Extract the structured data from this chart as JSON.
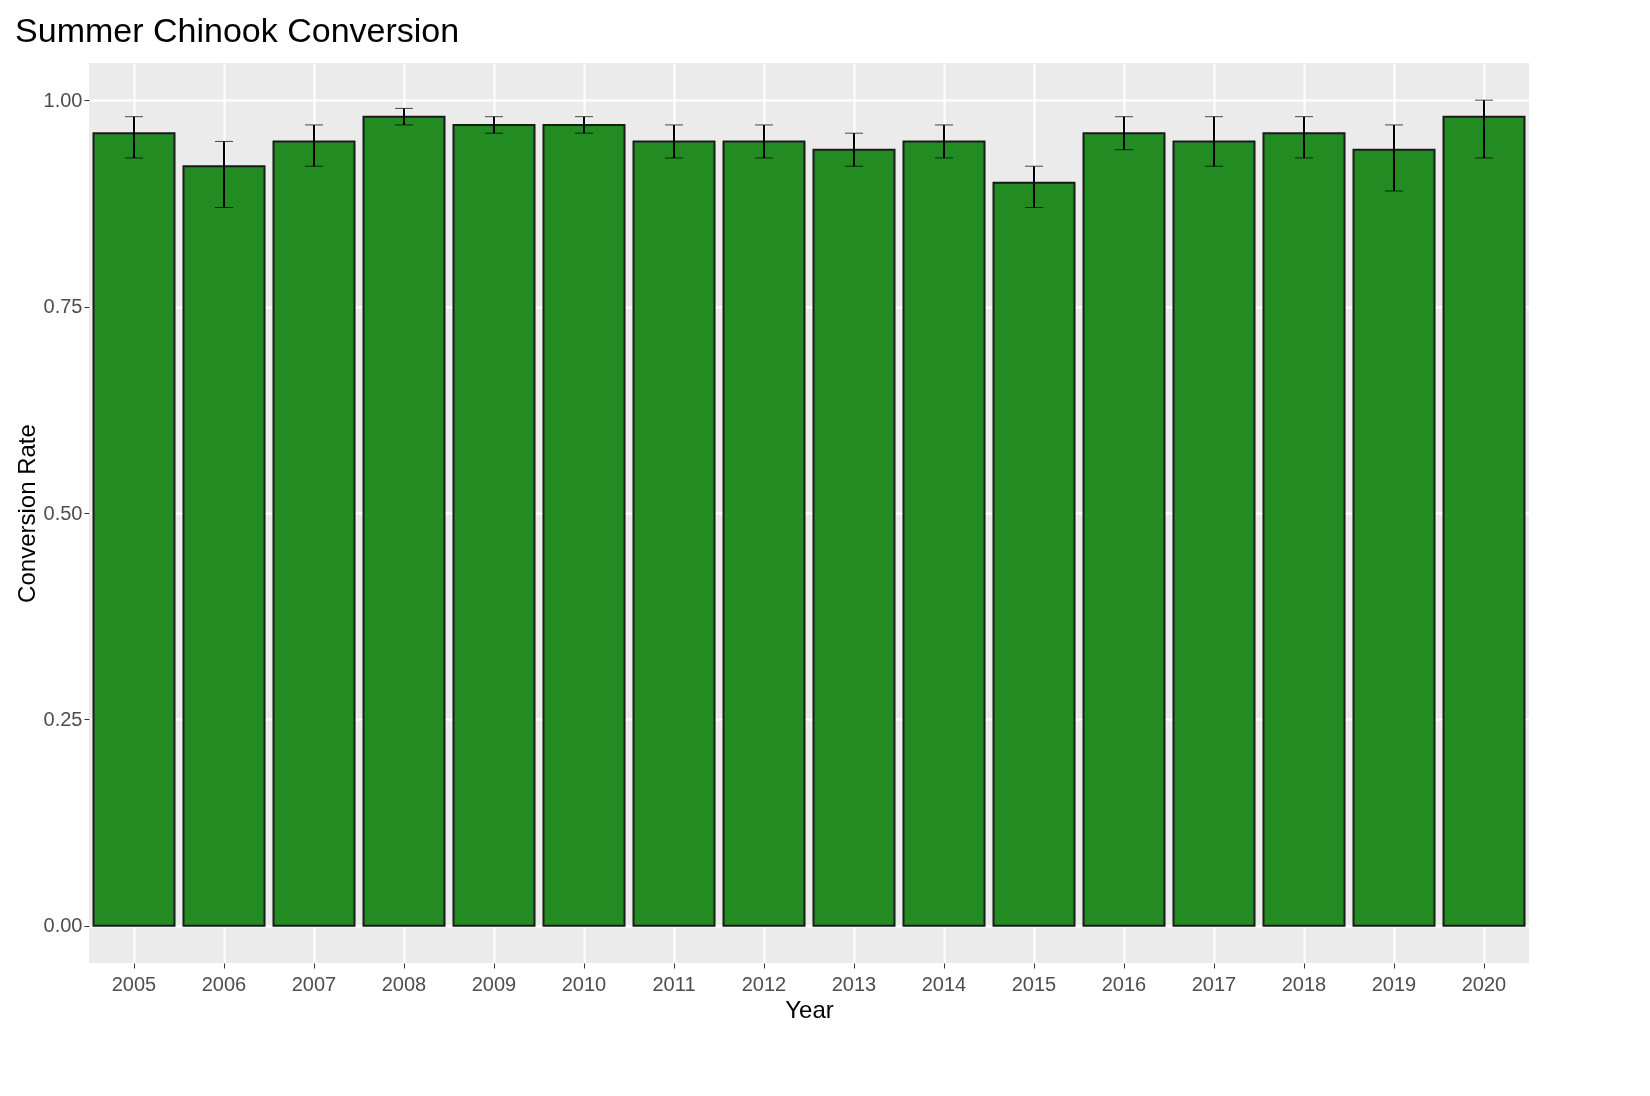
{
  "chart_data": {
    "type": "bar",
    "title": "Summer Chinook Conversion",
    "xlabel": "Year",
    "ylabel": "Conversion Rate",
    "categories": [
      "2005",
      "2006",
      "2007",
      "2008",
      "2009",
      "2010",
      "2011",
      "2012",
      "2013",
      "2014",
      "2015",
      "2016",
      "2017",
      "2018",
      "2019",
      "2020"
    ],
    "values": [
      0.96,
      0.92,
      0.95,
      0.98,
      0.97,
      0.97,
      0.95,
      0.95,
      0.94,
      0.95,
      0.9,
      0.96,
      0.95,
      0.96,
      0.94,
      0.98
    ],
    "errors": [
      [
        0.93,
        0.98
      ],
      [
        0.87,
        0.95
      ],
      [
        0.92,
        0.97
      ],
      [
        0.97,
        0.99
      ],
      [
        0.96,
        0.98
      ],
      [
        0.96,
        0.98
      ],
      [
        0.93,
        0.97
      ],
      [
        0.93,
        0.97
      ],
      [
        0.92,
        0.96
      ],
      [
        0.93,
        0.97
      ],
      [
        0.87,
        0.92
      ],
      [
        0.94,
        0.98
      ],
      [
        0.92,
        0.98
      ],
      [
        0.93,
        0.98
      ],
      [
        0.89,
        0.97
      ],
      [
        0.93,
        1.0
      ]
    ],
    "color": "#228b22",
    "ylim": [
      -0.045,
      1.045
    ],
    "yticks": [
      {
        "value": 0,
        "label": "0.00"
      },
      {
        "value": 0.25,
        "label": "0.25"
      },
      {
        "value": 0.5,
        "label": "0.50"
      },
      {
        "value": 0.75,
        "label": "0.75"
      },
      {
        "value": 1,
        "label": "1.00"
      }
    ],
    "grid": true
  }
}
